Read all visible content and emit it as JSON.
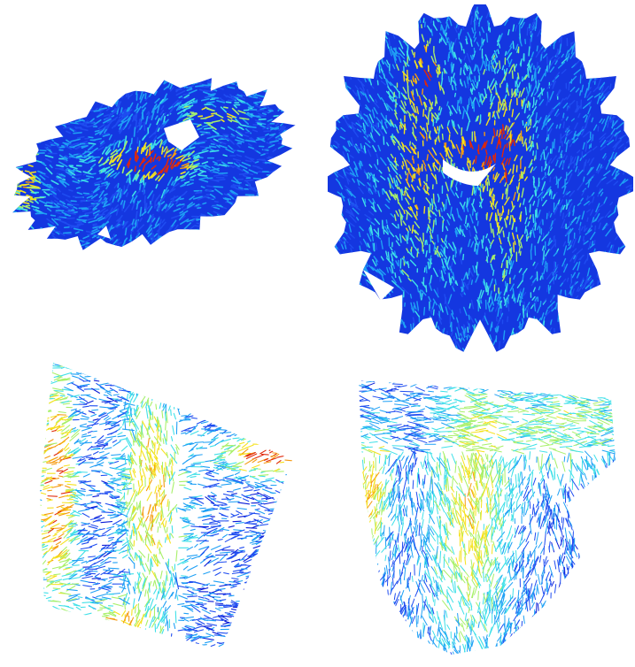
{
  "figure": {
    "background": "#ffffff",
    "colormap": [
      "#0a1ad6",
      "#1f4cf0",
      "#1fa0f5",
      "#3fe0e8",
      "#a8f06a",
      "#f5e21e",
      "#f59a10",
      "#e0280a"
    ],
    "panels": [
      {
        "id": "axial",
        "view": "axial-slice-tractography"
      },
      {
        "id": "coronal",
        "view": "coronal-slice-tractography"
      },
      {
        "id": "zoom-left",
        "view": "zoomed-fibers-left"
      },
      {
        "id": "zoom-right",
        "view": "zoomed-fibers-right"
      }
    ]
  }
}
